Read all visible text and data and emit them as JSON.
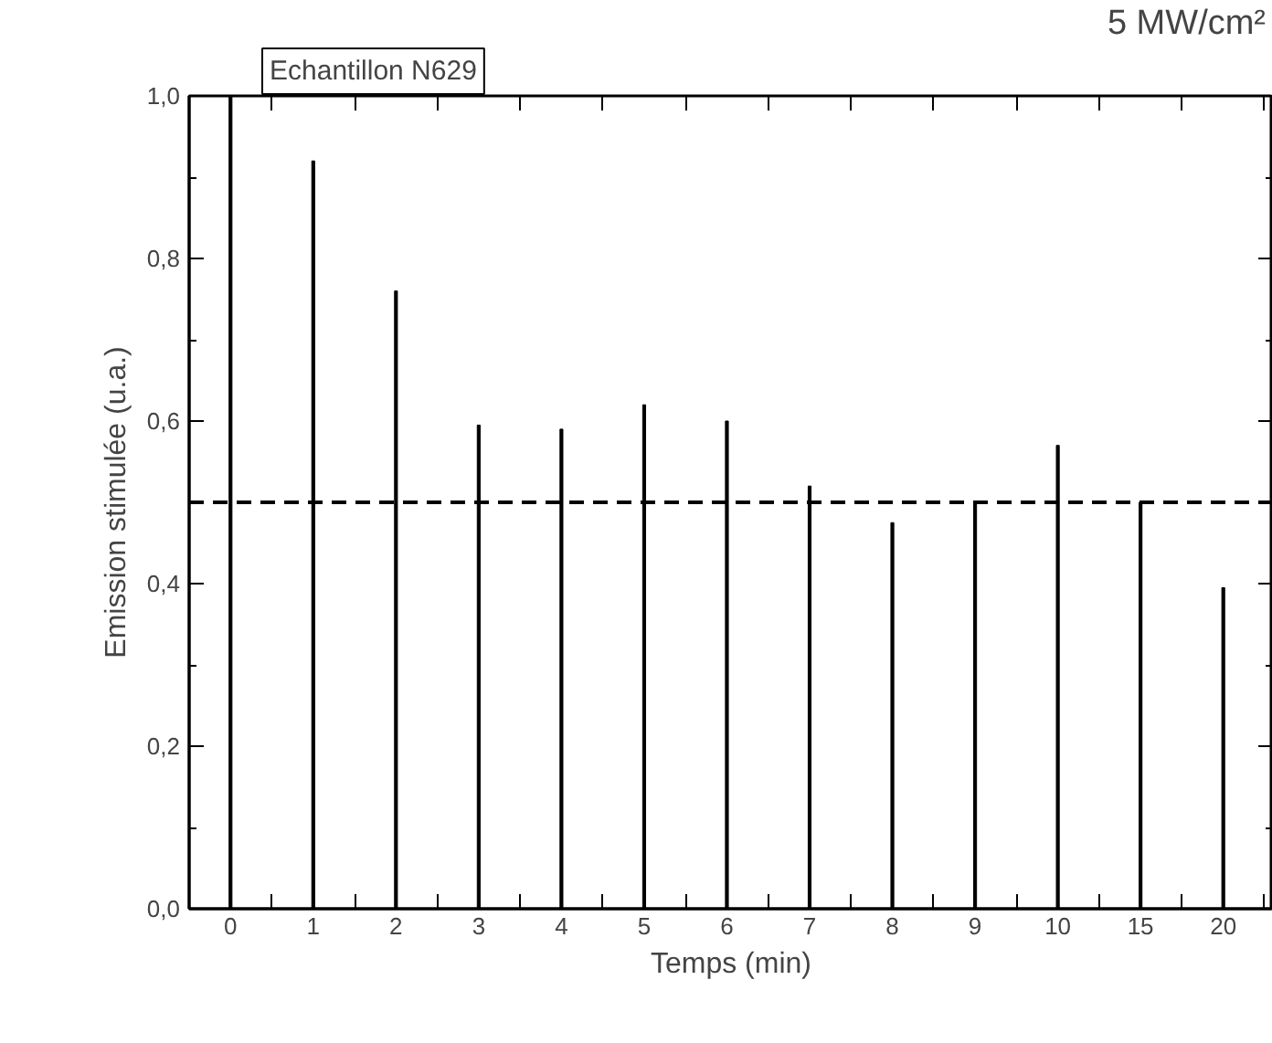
{
  "chart_data": {
    "type": "bar",
    "xlabel": "Temps (min)",
    "ylabel": "Emission stimulée (u.a.)",
    "categories": [
      "0",
      "1",
      "2",
      "3",
      "4",
      "5",
      "6",
      "7",
      "8",
      "9",
      "10",
      "15",
      "20"
    ],
    "series": [
      {
        "color": "#000000",
        "values": [
          1.0,
          0.92,
          0.76,
          0.595,
          0.59,
          0.62,
          0.6,
          0.52,
          0.475,
          0.5,
          0.57,
          0.5,
          0.395
        ]
      }
    ],
    "ylim": [
      0,
      1.0
    ],
    "yticks": [
      {
        "value": 0,
        "label": "0,0"
      },
      {
        "value": 0.2,
        "label": "0,2"
      },
      {
        "value": 0.4,
        "label": "0,4"
      },
      {
        "value": 0.6,
        "label": "0,6"
      },
      {
        "value": 0.8,
        "label": "0,8"
      },
      {
        "value": 1.0,
        "label": "1,0"
      }
    ],
    "ref_lines": [
      {
        "axis": "y",
        "value": 0.5,
        "line_style": "dashed",
        "color": "#000000"
      }
    ],
    "annotations": [
      "Echantillon N629",
      "5 MW/cm²"
    ],
    "grid": false
  }
}
